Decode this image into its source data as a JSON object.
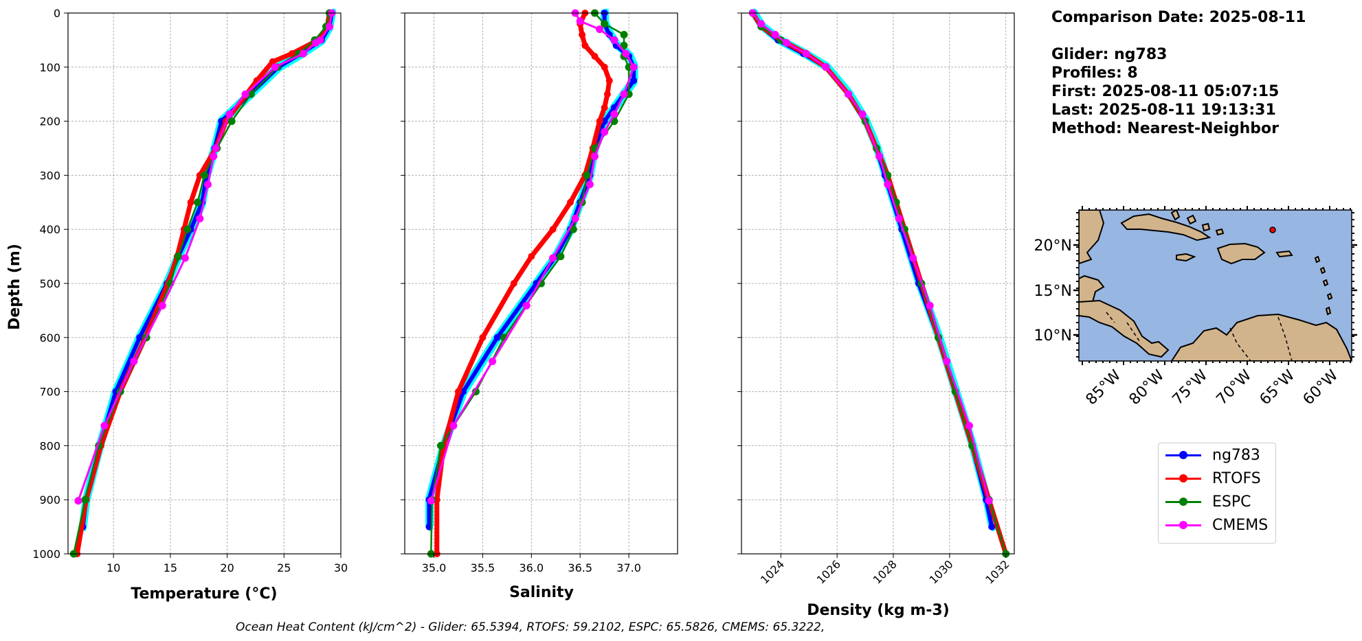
{
  "info": {
    "comparison_date": "Comparison Date: 2025-08-11",
    "glider": "Glider: ng783",
    "profiles": "Profiles: 8",
    "first": "First: 2025-08-11 05:07:15",
    "last": "Last: 2025-08-11 19:13:31",
    "method": "Method: Nearest-Neighbor"
  },
  "footer": "Ocean Heat Content (kJ/cm^2) - Glider: 65.5394,  RTOFS: 59.2102,  ESPC: 65.5826,  CMEMS: 65.3222,",
  "legend": [
    {
      "label": "ng783",
      "color": "#0000ff"
    },
    {
      "label": "RTOFS",
      "color": "#ff0000"
    },
    {
      "label": "ESPC",
      "color": "#008000"
    },
    {
      "label": "CMEMS",
      "color": "#ff00ff"
    }
  ],
  "chart_data": [
    {
      "type": "line",
      "xlabel": "Temperature (°C)",
      "ylabel": "Depth (m)",
      "xlim": [
        6,
        30
      ],
      "ylim": [
        1000,
        0
      ],
      "xticks": [
        "10",
        "15",
        "20",
        "25",
        "30"
      ],
      "yticks": [
        "0",
        "100",
        "200",
        "300",
        "400",
        "500",
        "600",
        "700",
        "800",
        "900",
        "1000"
      ],
      "grid": true,
      "series": [
        {
          "name": "ng783",
          "color": "#0000ff",
          "depth": [
            0,
            25,
            50,
            75,
            100,
            150,
            200,
            250,
            300,
            350,
            400,
            450,
            500,
            600,
            700,
            800,
            900,
            950
          ],
          "values": [
            29.2,
            29.0,
            28.3,
            26.5,
            24.5,
            22.0,
            19.5,
            18.9,
            18.2,
            17.8,
            16.8,
            15.7,
            14.7,
            12.3,
            10.2,
            8.8,
            7.6,
            7.3
          ]
        },
        {
          "name": "RTOFS",
          "color": "#ff0000",
          "depth": [
            0,
            25,
            50,
            75,
            90,
            125,
            150,
            200,
            250,
            300,
            350,
            400,
            450,
            500,
            600,
            700,
            800,
            900,
            1000
          ],
          "values": [
            29.0,
            28.8,
            28.0,
            25.7,
            24.0,
            22.6,
            21.7,
            19.9,
            19.0,
            17.6,
            16.8,
            16.2,
            15.6,
            14.8,
            12.8,
            10.6,
            8.9,
            7.6,
            6.8
          ]
        },
        {
          "name": "ESPC",
          "color": "#008000",
          "depth": [
            0,
            25,
            50,
            75,
            100,
            150,
            200,
            250,
            300,
            350,
            400,
            450,
            500,
            600,
            700,
            800,
            900,
            1000
          ],
          "values": [
            29.0,
            28.7,
            27.7,
            26.3,
            24.4,
            22.1,
            20.4,
            19.1,
            18.0,
            17.4,
            16.5,
            15.7,
            15.0,
            12.9,
            10.6,
            8.7,
            7.5,
            6.5
          ]
        },
        {
          "name": "CMEMS",
          "color": "#ff00ff",
          "depth": [
            0,
            25,
            50,
            55,
            75,
            100,
            150,
            187,
            250,
            265,
            317,
            380,
            453,
            541,
            644,
            763,
            902
          ],
          "values": [
            29.2,
            29.0,
            28.2,
            27.8,
            26.7,
            24.2,
            21.6,
            20.2,
            19.0,
            18.8,
            18.3,
            17.6,
            16.3,
            14.3,
            11.8,
            9.2,
            6.9
          ]
        }
      ]
    },
    {
      "type": "line",
      "xlabel": "Salinity",
      "xlim": [
        34.7,
        37.5
      ],
      "ylim": [
        1000,
        0
      ],
      "xticks": [
        "35.0",
        "35.5",
        "36.0",
        "36.5",
        "37.0"
      ],
      "grid": true,
      "series": [
        {
          "name": "ng783",
          "color": "#0000ff",
          "depth": [
            0,
            20,
            40,
            60,
            80,
            100,
            125,
            150,
            175,
            200,
            250,
            300,
            350,
            400,
            450,
            500,
            600,
            700,
            800,
            900,
            950
          ],
          "values": [
            36.75,
            36.75,
            36.8,
            36.87,
            37.0,
            37.05,
            37.05,
            36.95,
            36.85,
            36.75,
            36.65,
            36.6,
            36.5,
            36.4,
            36.25,
            36.05,
            35.65,
            35.3,
            35.1,
            34.95,
            34.95
          ]
        },
        {
          "name": "RTOFS",
          "color": "#ff0000",
          "depth": [
            0,
            20,
            40,
            60,
            80,
            100,
            125,
            150,
            175,
            200,
            250,
            300,
            350,
            400,
            450,
            500,
            600,
            700,
            800,
            900,
            1000
          ],
          "values": [
            36.55,
            36.5,
            36.52,
            36.55,
            36.65,
            36.75,
            36.8,
            36.78,
            36.75,
            36.7,
            36.63,
            36.55,
            36.4,
            36.22,
            36.0,
            35.82,
            35.5,
            35.25,
            35.1,
            35.03,
            35.03
          ]
        },
        {
          "name": "ESPC",
          "color": "#008000",
          "depth": [
            0,
            20,
            40,
            60,
            80,
            100,
            150,
            200,
            250,
            300,
            350,
            400,
            450,
            500,
            600,
            700,
            800,
            900,
            1000
          ],
          "values": [
            36.65,
            36.75,
            36.95,
            36.95,
            36.95,
            37.0,
            37.0,
            36.85,
            36.65,
            36.57,
            36.52,
            36.43,
            36.3,
            36.1,
            35.72,
            35.43,
            35.07,
            34.98,
            34.97
          ]
        },
        {
          "name": "CMEMS",
          "color": "#ff00ff",
          "depth": [
            0,
            15,
            30,
            50,
            75,
            100,
            150,
            187,
            220,
            265,
            317,
            380,
            453,
            541,
            644,
            763,
            902
          ],
          "values": [
            36.45,
            36.5,
            36.7,
            36.85,
            36.97,
            37.05,
            36.95,
            36.85,
            36.75,
            36.65,
            36.6,
            36.45,
            36.22,
            35.95,
            35.6,
            35.2,
            34.97
          ]
        }
      ]
    },
    {
      "type": "line",
      "xlabel": "Density (kg m-3)",
      "xlim": [
        1022.6,
        1032.3
      ],
      "ylim": [
        1000,
        0
      ],
      "xticks": [
        "1024",
        "1026",
        "1028",
        "1030",
        "1032"
      ],
      "grid": true,
      "series": [
        {
          "name": "ng783",
          "color": "#0000ff",
          "depth": [
            0,
            25,
            50,
            75,
            100,
            150,
            200,
            250,
            300,
            400,
            500,
            600,
            700,
            800,
            900,
            950
          ],
          "values": [
            1023.0,
            1023.3,
            1023.9,
            1024.8,
            1025.6,
            1026.4,
            1027.0,
            1027.4,
            1027.7,
            1028.3,
            1028.9,
            1029.6,
            1030.2,
            1030.8,
            1031.3,
            1031.5
          ]
        },
        {
          "name": "RTOFS",
          "color": "#ff0000",
          "depth": [
            0,
            25,
            50,
            75,
            100,
            150,
            200,
            250,
            300,
            400,
            500,
            600,
            700,
            800,
            900,
            1000
          ],
          "values": [
            1023.0,
            1023.3,
            1024.0,
            1024.9,
            1025.6,
            1026.4,
            1027.0,
            1027.4,
            1027.8,
            1028.4,
            1029.0,
            1029.6,
            1030.2,
            1030.8,
            1031.4,
            1032.0
          ]
        },
        {
          "name": "ESPC",
          "color": "#008000",
          "depth": [
            0,
            25,
            50,
            75,
            100,
            150,
            200,
            250,
            300,
            350,
            400,
            500,
            600,
            700,
            800,
            900,
            1000
          ],
          "values": [
            1023.0,
            1023.3,
            1024.0,
            1024.9,
            1025.6,
            1026.4,
            1027.0,
            1027.4,
            1027.8,
            1028.1,
            1028.4,
            1029.0,
            1029.6,
            1030.2,
            1030.8,
            1031.4,
            1032.0
          ]
        },
        {
          "name": "CMEMS",
          "color": "#ff00ff",
          "depth": [
            0,
            20,
            40,
            55,
            75,
            100,
            150,
            187,
            265,
            317,
            380,
            453,
            541,
            644,
            763,
            902
          ],
          "values": [
            1023.0,
            1023.3,
            1023.8,
            1024.2,
            1024.9,
            1025.6,
            1026.4,
            1026.9,
            1027.5,
            1027.8,
            1028.2,
            1028.7,
            1029.3,
            1029.9,
            1030.7,
            1031.4
          ]
        }
      ]
    }
  ],
  "map": {
    "lat_labels": [
      "20°N",
      "15°N",
      "10°N"
    ],
    "lon_labels": [
      "85°W",
      "80°W",
      "75°W",
      "70°W",
      "65°W",
      "60°W"
    ],
    "ocean_color": "#97b6e1",
    "land_color": "#d2b48c",
    "glider_marker_color": "#ff0000"
  }
}
